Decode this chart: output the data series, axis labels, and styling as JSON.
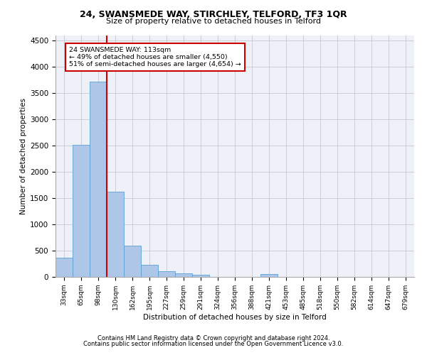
{
  "title1": "24, SWANSMEDE WAY, STIRCHLEY, TELFORD, TF3 1QR",
  "title2": "Size of property relative to detached houses in Telford",
  "xlabel": "Distribution of detached houses by size in Telford",
  "ylabel": "Number of detached properties",
  "categories": [
    "33sqm",
    "65sqm",
    "98sqm",
    "130sqm",
    "162sqm",
    "195sqm",
    "227sqm",
    "259sqm",
    "291sqm",
    "324sqm",
    "356sqm",
    "388sqm",
    "421sqm",
    "453sqm",
    "485sqm",
    "518sqm",
    "550sqm",
    "582sqm",
    "614sqm",
    "647sqm",
    "679sqm"
  ],
  "values": [
    370,
    2510,
    3720,
    1630,
    590,
    230,
    110,
    70,
    45,
    0,
    0,
    0,
    60,
    0,
    0,
    0,
    0,
    0,
    0,
    0,
    0
  ],
  "bar_color": "#aec6e8",
  "bar_edge_color": "#5a9fd4",
  "red_line_x": 2.5,
  "annotation_text": "24 SWANSMEDE WAY: 113sqm\n← 49% of detached houses are smaller (4,550)\n51% of semi-detached houses are larger (4,654) →",
  "annotation_box_color": "#ffffff",
  "annotation_box_edge": "#cc0000",
  "footer1": "Contains HM Land Registry data © Crown copyright and database right 2024.",
  "footer2": "Contains public sector information licensed under the Open Government Licence v3.0.",
  "bg_color": "#eef2f8",
  "grid_color": "#c8c8d0",
  "ylim": [
    0,
    4600
  ],
  "yticks": [
    0,
    500,
    1000,
    1500,
    2000,
    2500,
    3000,
    3500,
    4000,
    4500
  ]
}
